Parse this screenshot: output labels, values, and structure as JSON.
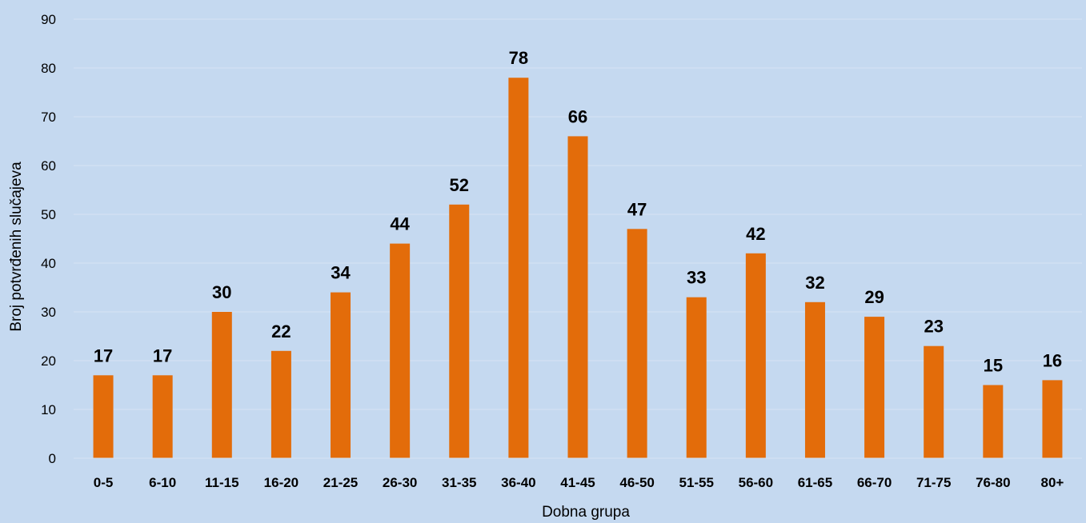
{
  "chart_data": {
    "type": "bar",
    "title": "",
    "xlabel": "Dobna grupa",
    "ylabel": "Broj potvrđenih slučajeva",
    "categories": [
      "0-5",
      "6-10",
      "11-15",
      "16-20",
      "21-25",
      "26-30",
      "31-35",
      "36-40",
      "41-45",
      "46-50",
      "51-55",
      "56-60",
      "61-65",
      "66-70",
      "71-75",
      "76-80",
      "80+"
    ],
    "values": [
      17,
      17,
      30,
      22,
      34,
      44,
      52,
      78,
      66,
      47,
      33,
      42,
      32,
      29,
      23,
      15,
      16
    ],
    "ylim": [
      0,
      90
    ],
    "yticks": [
      0,
      10,
      20,
      30,
      40,
      50,
      60,
      70,
      80,
      90
    ],
    "grid": true,
    "legend": "none",
    "data_labels": true
  },
  "colors": {
    "background": "#c5d9f0",
    "bar": "#e36c0a",
    "grid": "#d6e3f3",
    "text": "#000000"
  }
}
